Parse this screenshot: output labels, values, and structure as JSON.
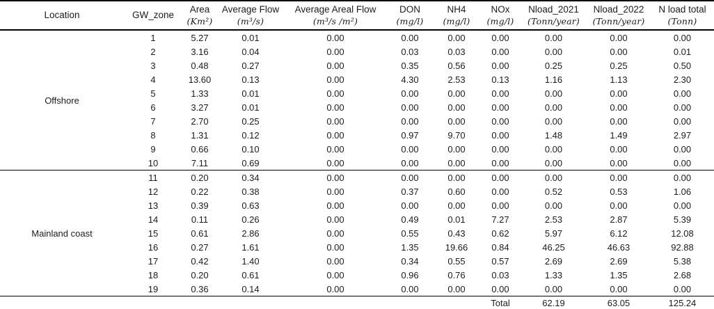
{
  "table": {
    "columns": [
      {
        "id": "location",
        "label": "Location",
        "unit": ""
      },
      {
        "id": "gw_zone",
        "label": "GW_zone",
        "unit": ""
      },
      {
        "id": "area",
        "label": "Area",
        "unit": "(Km²)"
      },
      {
        "id": "average_flow",
        "label": "Average Flow",
        "unit": "(m³/s)"
      },
      {
        "id": "average_areal_flow",
        "label": "Average Areal Flow",
        "unit": "(m³/s /m²)"
      },
      {
        "id": "don",
        "label": "DON",
        "unit": "(mg/l)"
      },
      {
        "id": "nh4",
        "label": "NH4",
        "unit": "(mg/l)"
      },
      {
        "id": "nox",
        "label": "NOx",
        "unit": "(mg/l)"
      },
      {
        "id": "nload_2021",
        "label": "Nload_2021",
        "unit": "(Tonn/year)"
      },
      {
        "id": "nload_2022",
        "label": "Nload_2022",
        "unit": "(Tonn/year)"
      },
      {
        "id": "n_load_total",
        "label": "N load total",
        "unit": "(Tonn)"
      }
    ],
    "groups": [
      {
        "location": "Offshore",
        "rows": [
          [
            "1",
            "5.27",
            "0.01",
            "0.00",
            "0.00",
            "0.00",
            "0.00",
            "0.00",
            "0.00",
            "0.00"
          ],
          [
            "2",
            "3.16",
            "0.04",
            "0.00",
            "0.03",
            "0.03",
            "0.00",
            "0.00",
            "0.00",
            "0.01"
          ],
          [
            "3",
            "0.48",
            "0.27",
            "0.00",
            "0.35",
            "0.56",
            "0.00",
            "0.25",
            "0.25",
            "0.50"
          ],
          [
            "4",
            "13.60",
            "0.13",
            "0.00",
            "4.30",
            "2.53",
            "0.13",
            "1.16",
            "1.13",
            "2.30"
          ],
          [
            "5",
            "1.33",
            "0.01",
            "0.00",
            "0.00",
            "0.00",
            "0.00",
            "0.00",
            "0.00",
            "0.00"
          ],
          [
            "6",
            "3.27",
            "0.01",
            "0.00",
            "0.00",
            "0.00",
            "0.00",
            "0.00",
            "0.00",
            "0.00"
          ],
          [
            "7",
            "2.70",
            "0.25",
            "0.00",
            "0.00",
            "0.00",
            "0.00",
            "0.00",
            "0.00",
            "0.00"
          ],
          [
            "8",
            "1.31",
            "0.12",
            "0.00",
            "0.97",
            "9.70",
            "0.00",
            "1.48",
            "1.49",
            "2.97"
          ],
          [
            "9",
            "0.66",
            "0.10",
            "0.00",
            "0.00",
            "0.00",
            "0.00",
            "0.00",
            "0.00",
            "0.00"
          ],
          [
            "10",
            "7.11",
            "0.69",
            "0.00",
            "0.00",
            "0.00",
            "0.00",
            "0.00",
            "0.00",
            "0.00"
          ]
        ]
      },
      {
        "location": "Mainland coast",
        "rows": [
          [
            "11",
            "0.20",
            "0.34",
            "0.00",
            "0.00",
            "0.00",
            "0.00",
            "0.00",
            "0.00",
            "0.00"
          ],
          [
            "12",
            "0.22",
            "0.38",
            "0.00",
            "0.37",
            "0.60",
            "0.00",
            "0.52",
            "0.53",
            "1.06"
          ],
          [
            "13",
            "0.39",
            "0.63",
            "0.00",
            "0.00",
            "0.00",
            "0.00",
            "0.00",
            "0.00",
            "0.00"
          ],
          [
            "14",
            "0.11",
            "0.26",
            "0.00",
            "0.49",
            "0.01",
            "7.27",
            "2.53",
            "2.87",
            "5.39"
          ],
          [
            "15",
            "0.61",
            "2.86",
            "0.00",
            "0.55",
            "0.43",
            "0.62",
            "5.97",
            "6.12",
            "12.08"
          ],
          [
            "16",
            "0.27",
            "1.61",
            "0.00",
            "1.35",
            "19.66",
            "0.84",
            "46.25",
            "46.63",
            "92.88"
          ],
          [
            "17",
            "0.42",
            "1.40",
            "0.00",
            "0.34",
            "0.55",
            "0.57",
            "2.69",
            "2.69",
            "5.38"
          ],
          [
            "18",
            "0.20",
            "0.61",
            "0.00",
            "0.96",
            "0.76",
            "0.03",
            "1.33",
            "1.35",
            "2.68"
          ],
          [
            "19",
            "0.36",
            "0.14",
            "0.00",
            "0.00",
            "0.00",
            "0.00",
            "0.00",
            "0.00",
            "0.00"
          ]
        ]
      }
    ],
    "total": {
      "label": "Total",
      "nload_2021": "62.19",
      "nload_2022": "63.05",
      "n_load_total": "125.24"
    }
  }
}
